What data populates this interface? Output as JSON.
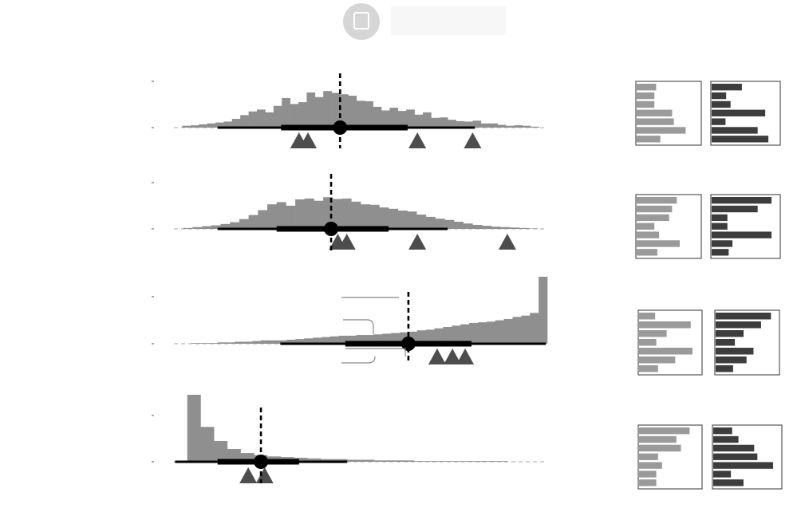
{
  "colors": {
    "histogram": "#8f8f8f",
    "interval": "#000000",
    "marker": "#4d4d4d",
    "panel_light": "#9a9a9a",
    "panel_dark": "#3d3d3d",
    "baseline_dash": "#b8b8b8"
  },
  "header": {
    "icon": "square-icon"
  },
  "chart_data": [
    {
      "type": "bar",
      "row": 1,
      "histogram": [
        0.0,
        0.04,
        0.05,
        0.07,
        0.09,
        0.11,
        0.13,
        0.19,
        0.27,
        0.35,
        0.39,
        0.33,
        0.47,
        0.64,
        0.51,
        0.55,
        0.76,
        0.66,
        0.79,
        0.75,
        0.72,
        0.69,
        0.58,
        0.57,
        0.45,
        0.37,
        0.43,
        0.36,
        0.39,
        0.28,
        0.33,
        0.21,
        0.22,
        0.17,
        0.14,
        0.13,
        0.15,
        0.09,
        0.09,
        0.06,
        0.04,
        0.05,
        0.04,
        0.02,
        0.0
      ],
      "estimate": 0.445,
      "interval_thin": [
        0.117,
        0.806
      ],
      "interval_thick": [
        0.287,
        0.626
      ],
      "reference_line": 0.445,
      "triangles": [
        0.335,
        0.359,
        0.652,
        0.8
      ],
      "panel_light": [
        0.33,
        0.3,
        0.3,
        0.6,
        0.63,
        0.83,
        0.4
      ],
      "panel_dark": [
        0.48,
        0.23,
        0.3,
        0.85,
        0.22,
        0.73,
        0.9
      ]
    },
    {
      "type": "bar",
      "row": 2,
      "histogram": [
        0.0,
        0.02,
        0.04,
        0.06,
        0.08,
        0.11,
        0.15,
        0.22,
        0.31,
        0.42,
        0.55,
        0.6,
        0.52,
        0.66,
        0.68,
        0.63,
        0.71,
        0.67,
        0.68,
        0.61,
        0.55,
        0.54,
        0.48,
        0.45,
        0.41,
        0.39,
        0.32,
        0.27,
        0.23,
        0.2,
        0.16,
        0.12,
        0.09,
        0.07,
        0.05,
        0.04,
        0.03,
        0.02,
        0.01,
        0.0
      ],
      "estimate": 0.421,
      "interval_thin": [
        0.117,
        0.733
      ],
      "interval_thick": [
        0.275,
        0.575
      ],
      "reference_line": 0.421,
      "triangles": [
        0.439,
        0.463,
        0.652,
        0.893
      ],
      "panel_light": [
        0.68,
        0.6,
        0.55,
        0.3,
        0.38,
        0.73,
        0.35
      ],
      "panel_dark": [
        0.95,
        0.73,
        0.25,
        0.25,
        0.95,
        0.33,
        0.27
      ]
    },
    {
      "type": "bar",
      "row": 3,
      "histogram": [
        0.0,
        0.0,
        0.01,
        0.01,
        0.01,
        0.02,
        0.02,
        0.03,
        0.03,
        0.04,
        0.05,
        0.05,
        0.05,
        0.06,
        0.07,
        0.08,
        0.09,
        0.1,
        0.11,
        0.12,
        0.12,
        0.13,
        0.13,
        0.14,
        0.15,
        0.16,
        0.17,
        0.18,
        0.2,
        0.21,
        0.23,
        0.25,
        0.27,
        0.29,
        0.31,
        0.32,
        0.33,
        0.35,
        0.37,
        0.4,
        0.42,
        0.46,
        1.0
      ],
      "estimate": 0.628,
      "interval_thin": [
        0.285,
        0.996
      ],
      "interval_thick": [
        0.459,
        0.797
      ],
      "reference_line": 0.628,
      "triangles": [
        0.705,
        0.746,
        0.78
      ],
      "panel_light": [
        0.28,
        0.9,
        0.48,
        0.3,
        0.93,
        0.63,
        0.33
      ],
      "panel_dark": [
        0.95,
        0.78,
        0.48,
        0.33,
        0.65,
        0.53,
        0.3
      ]
    },
    {
      "type": "bar",
      "row": 4,
      "histogram": [
        0.0,
        1.0,
        0.52,
        0.31,
        0.19,
        0.13,
        0.1,
        0.08,
        0.07,
        0.06,
        0.05,
        0.04,
        0.04,
        0.03,
        0.03,
        0.02,
        0.02,
        0.02,
        0.01,
        0.01,
        0.01,
        0.01,
        0.01,
        0.01,
        0.01,
        0.0,
        0.0,
        0.0
      ],
      "estimate": 0.233,
      "interval_thin": [
        0.003,
        0.464
      ],
      "interval_thick": [
        0.117,
        0.335
      ],
      "reference_line": 0.233,
      "triangles": [
        0.199,
        0.243
      ],
      "panel_light": [
        0.88,
        0.65,
        0.73,
        0.33,
        0.4,
        0.3,
        0.3
      ],
      "panel_dark": [
        0.3,
        0.4,
        0.65,
        0.7,
        0.95,
        0.28,
        0.48
      ]
    }
  ]
}
